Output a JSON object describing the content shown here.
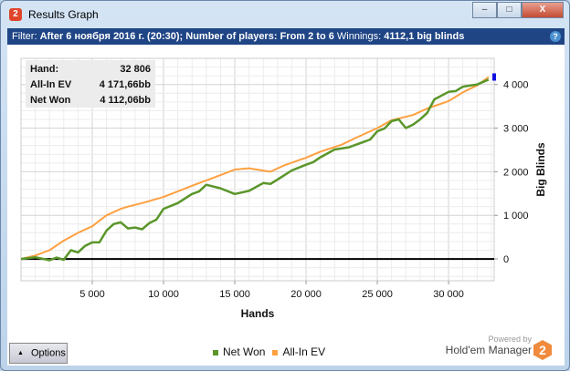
{
  "window": {
    "title": "Results Graph",
    "icon_label": "2",
    "minimize": "–",
    "maximize": "□",
    "close": "X"
  },
  "filter": {
    "prefix": "Filter:",
    "date": "After 6 ноября 2016 г. (20:30);",
    "players_label": "Number of players:",
    "players": "From 2 to 6",
    "winnings_label": "Winnings:",
    "winnings": "4112,1 big blinds",
    "help": "?"
  },
  "info": {
    "rows": [
      {
        "label": "Hand:",
        "value": "32 806"
      },
      {
        "label": "All-In EV",
        "value": "4 171,66bb"
      },
      {
        "label": "Net Won",
        "value": "4 112,06bb"
      }
    ]
  },
  "options_label": "Options",
  "brand": {
    "powered": "Powered by",
    "name": "Hold'em Manager",
    "logo": "2"
  },
  "colors": {
    "net_won": "#5a962a",
    "allin_ev": "#ffa040",
    "zero_line": "#000000"
  },
  "chart_data": {
    "type": "line",
    "xlabel": "Hands",
    "ylabel": "Big Blinds",
    "xlim": [
      0,
      33200
    ],
    "ylim": [
      -500,
      4600
    ],
    "xticks": [
      5000,
      10000,
      15000,
      20000,
      25000,
      30000
    ],
    "xtick_labels": [
      "5 000",
      "10 000",
      "15 000",
      "20 000",
      "25 000",
      "30 000"
    ],
    "yticks": [
      0,
      1000,
      2000,
      3000,
      4000
    ],
    "ytick_labels": [
      "0",
      "1 000",
      "2 000",
      "3 000",
      "4 000"
    ],
    "legend": "bottom-center",
    "series": [
      {
        "name": "Net Won",
        "x": [
          0,
          1000,
          2000,
          2500,
          3000,
          3500,
          4000,
          4500,
          5000,
          5500,
          6000,
          6500,
          7000,
          7500,
          8000,
          8500,
          9000,
          9500,
          10000,
          11000,
          12000,
          12500,
          13000,
          14000,
          15000,
          16000,
          17000,
          17500,
          18000,
          19000,
          20000,
          20500,
          21000,
          22000,
          23000,
          24000,
          24500,
          25000,
          25500,
          26000,
          26500,
          27000,
          27500,
          28000,
          28500,
          29000,
          30000,
          30500,
          31000,
          32000,
          32806
        ],
        "y": [
          0,
          40,
          -30,
          30,
          -20,
          200,
          150,
          300,
          380,
          380,
          650,
          800,
          840,
          700,
          720,
          680,
          820,
          900,
          1150,
          1280,
          1490,
          1550,
          1700,
          1620,
          1490,
          1560,
          1740,
          1720,
          1820,
          2030,
          2160,
          2220,
          2330,
          2510,
          2560,
          2680,
          2740,
          2930,
          2990,
          3160,
          3200,
          3000,
          3080,
          3200,
          3350,
          3660,
          3830,
          3850,
          3950,
          4000,
          4112
        ]
      },
      {
        "name": "All-In EV",
        "x": [
          0,
          1000,
          2000,
          2500,
          3000,
          4000,
          5000,
          6000,
          7000,
          7500,
          8500,
          10000,
          11000,
          12500,
          13500,
          15000,
          16000,
          17500,
          18500,
          20000,
          21000,
          22500,
          23500,
          25000,
          26000,
          27500,
          28500,
          30000,
          31000,
          32000,
          32806
        ],
        "y": [
          0,
          80,
          200,
          310,
          420,
          600,
          750,
          1000,
          1150,
          1200,
          1280,
          1420,
          1550,
          1740,
          1860,
          2050,
          2080,
          2000,
          2150,
          2320,
          2460,
          2620,
          2780,
          3000,
          3180,
          3300,
          3450,
          3620,
          3820,
          3980,
          4172
        ]
      }
    ]
  }
}
